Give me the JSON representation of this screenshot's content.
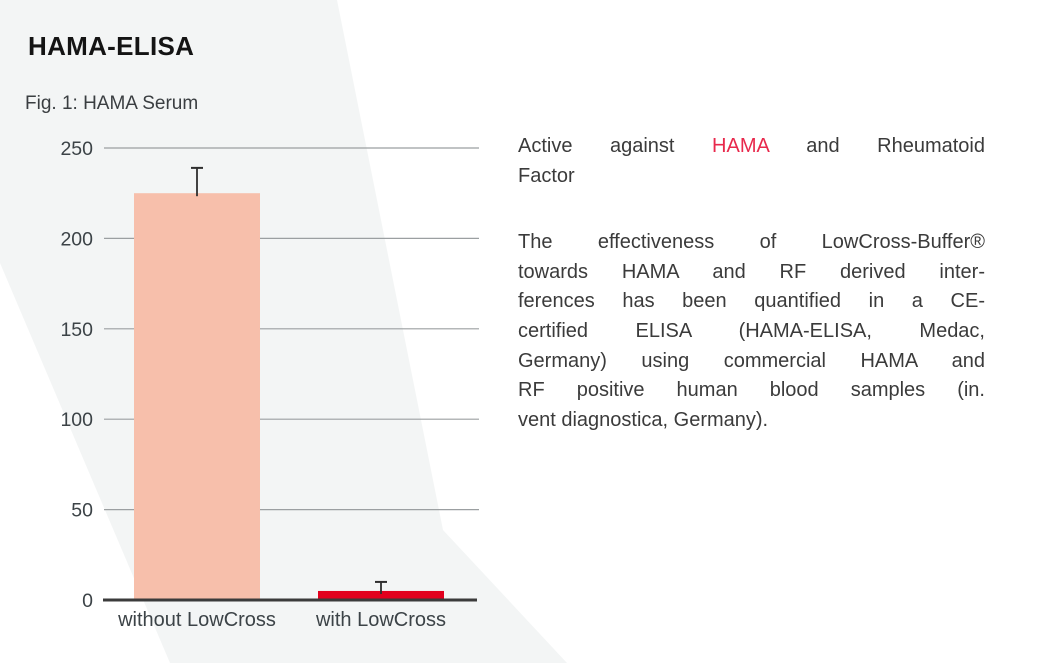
{
  "page": {
    "title": "HAMA-ELISA",
    "figure_caption": "Fig. 1: HAMA Serum"
  },
  "colors": {
    "background_band": "#f3f5f5",
    "gridline": "#9b9fa1",
    "baseline": "#3b3b3b",
    "axis_text": "#3c4347",
    "body_text": "#3b3b3b",
    "title_text": "#141414",
    "highlight_red": "#e8294c",
    "error_bar": "#2e2e2e"
  },
  "chart_data": {
    "type": "bar",
    "title": "Fig. 1: HAMA Serum",
    "categories": [
      "without LowCross",
      "with LowCross"
    ],
    "values": [
      225,
      5
    ],
    "error_plus": [
      14,
      5
    ],
    "bar_colors": [
      "#f7bfab",
      "#e2001d"
    ],
    "xlabel": "",
    "ylabel": "",
    "ylim": [
      0,
      250
    ],
    "yticks": [
      0,
      50,
      100,
      150,
      200,
      250
    ],
    "grid": true,
    "legend_position": "none"
  },
  "text_column": {
    "heading": {
      "line1_prefix": "Active against ",
      "line1_highlight": "HAMA",
      "line1_suffix": " and Rheumatoid",
      "line2": "Factor"
    },
    "paragraph_lines": [
      "The effectiveness of LowCross-Buffer®",
      "towards HAMA and RF derived inter-",
      "ferences has been quantified in a CE-",
      "certified ELISA (HAMA-ELISA, Medac,",
      "Germany) using commercial HAMA and",
      "RF positive human blood samples (in.",
      "vent diagnostica, Germany)."
    ]
  }
}
